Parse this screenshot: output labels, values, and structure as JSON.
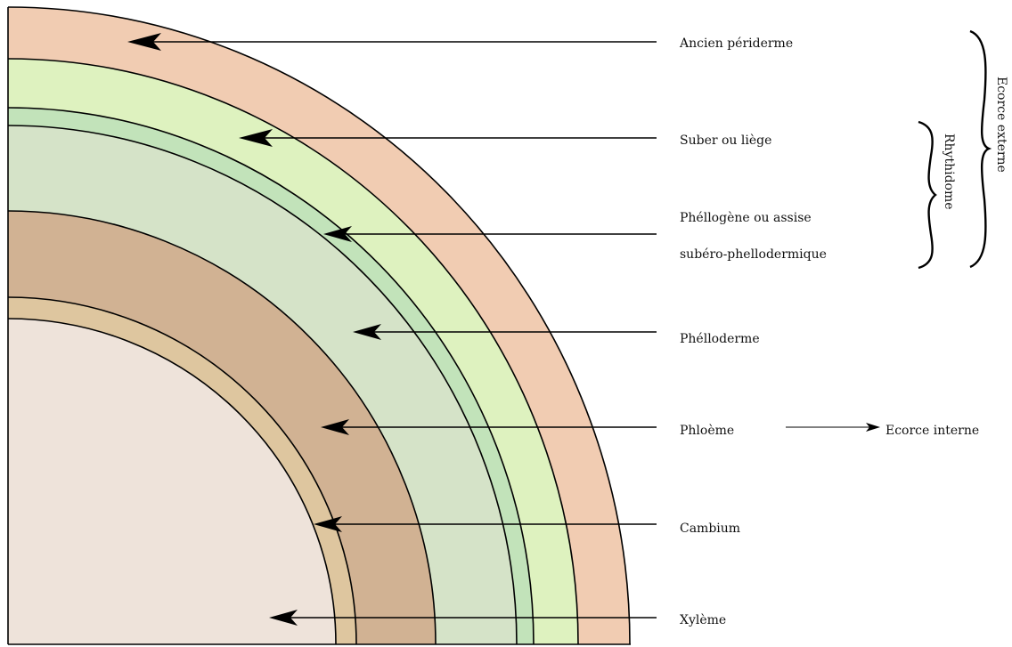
{
  "layers": [
    {
      "name": "ancien-periderme",
      "color": "#F1CCB2"
    },
    {
      "name": "suber",
      "color": "#DEF2BF"
    },
    {
      "name": "phellogene",
      "color": "#C2E3BA"
    },
    {
      "name": "phelloderme",
      "color": "#D5E3C8"
    },
    {
      "name": "phloeme",
      "color": "#D1B293"
    },
    {
      "name": "cambium",
      "color": "#DEC69F"
    },
    {
      "name": "xyleme",
      "color": "#EEE3DA"
    }
  ],
  "labels": {
    "ancien_periderme": "Ancien périderme",
    "suber": "Suber ou liège",
    "phellogene_line1": "Phéllogène ou assise",
    "phellogene_line2": "subéro-phellodermique",
    "phelloderme": "Phélloderme",
    "phloeme": "Phloème",
    "cambium": "Cambium",
    "xyleme": "Xylème",
    "ecorce_interne": "Ecorce interne",
    "rhythidome": "Rhythidome",
    "ecorce_externe": "Ecorce externe"
  },
  "colors": {
    "stroke": "#000000",
    "background": "#FFFFFF"
  }
}
